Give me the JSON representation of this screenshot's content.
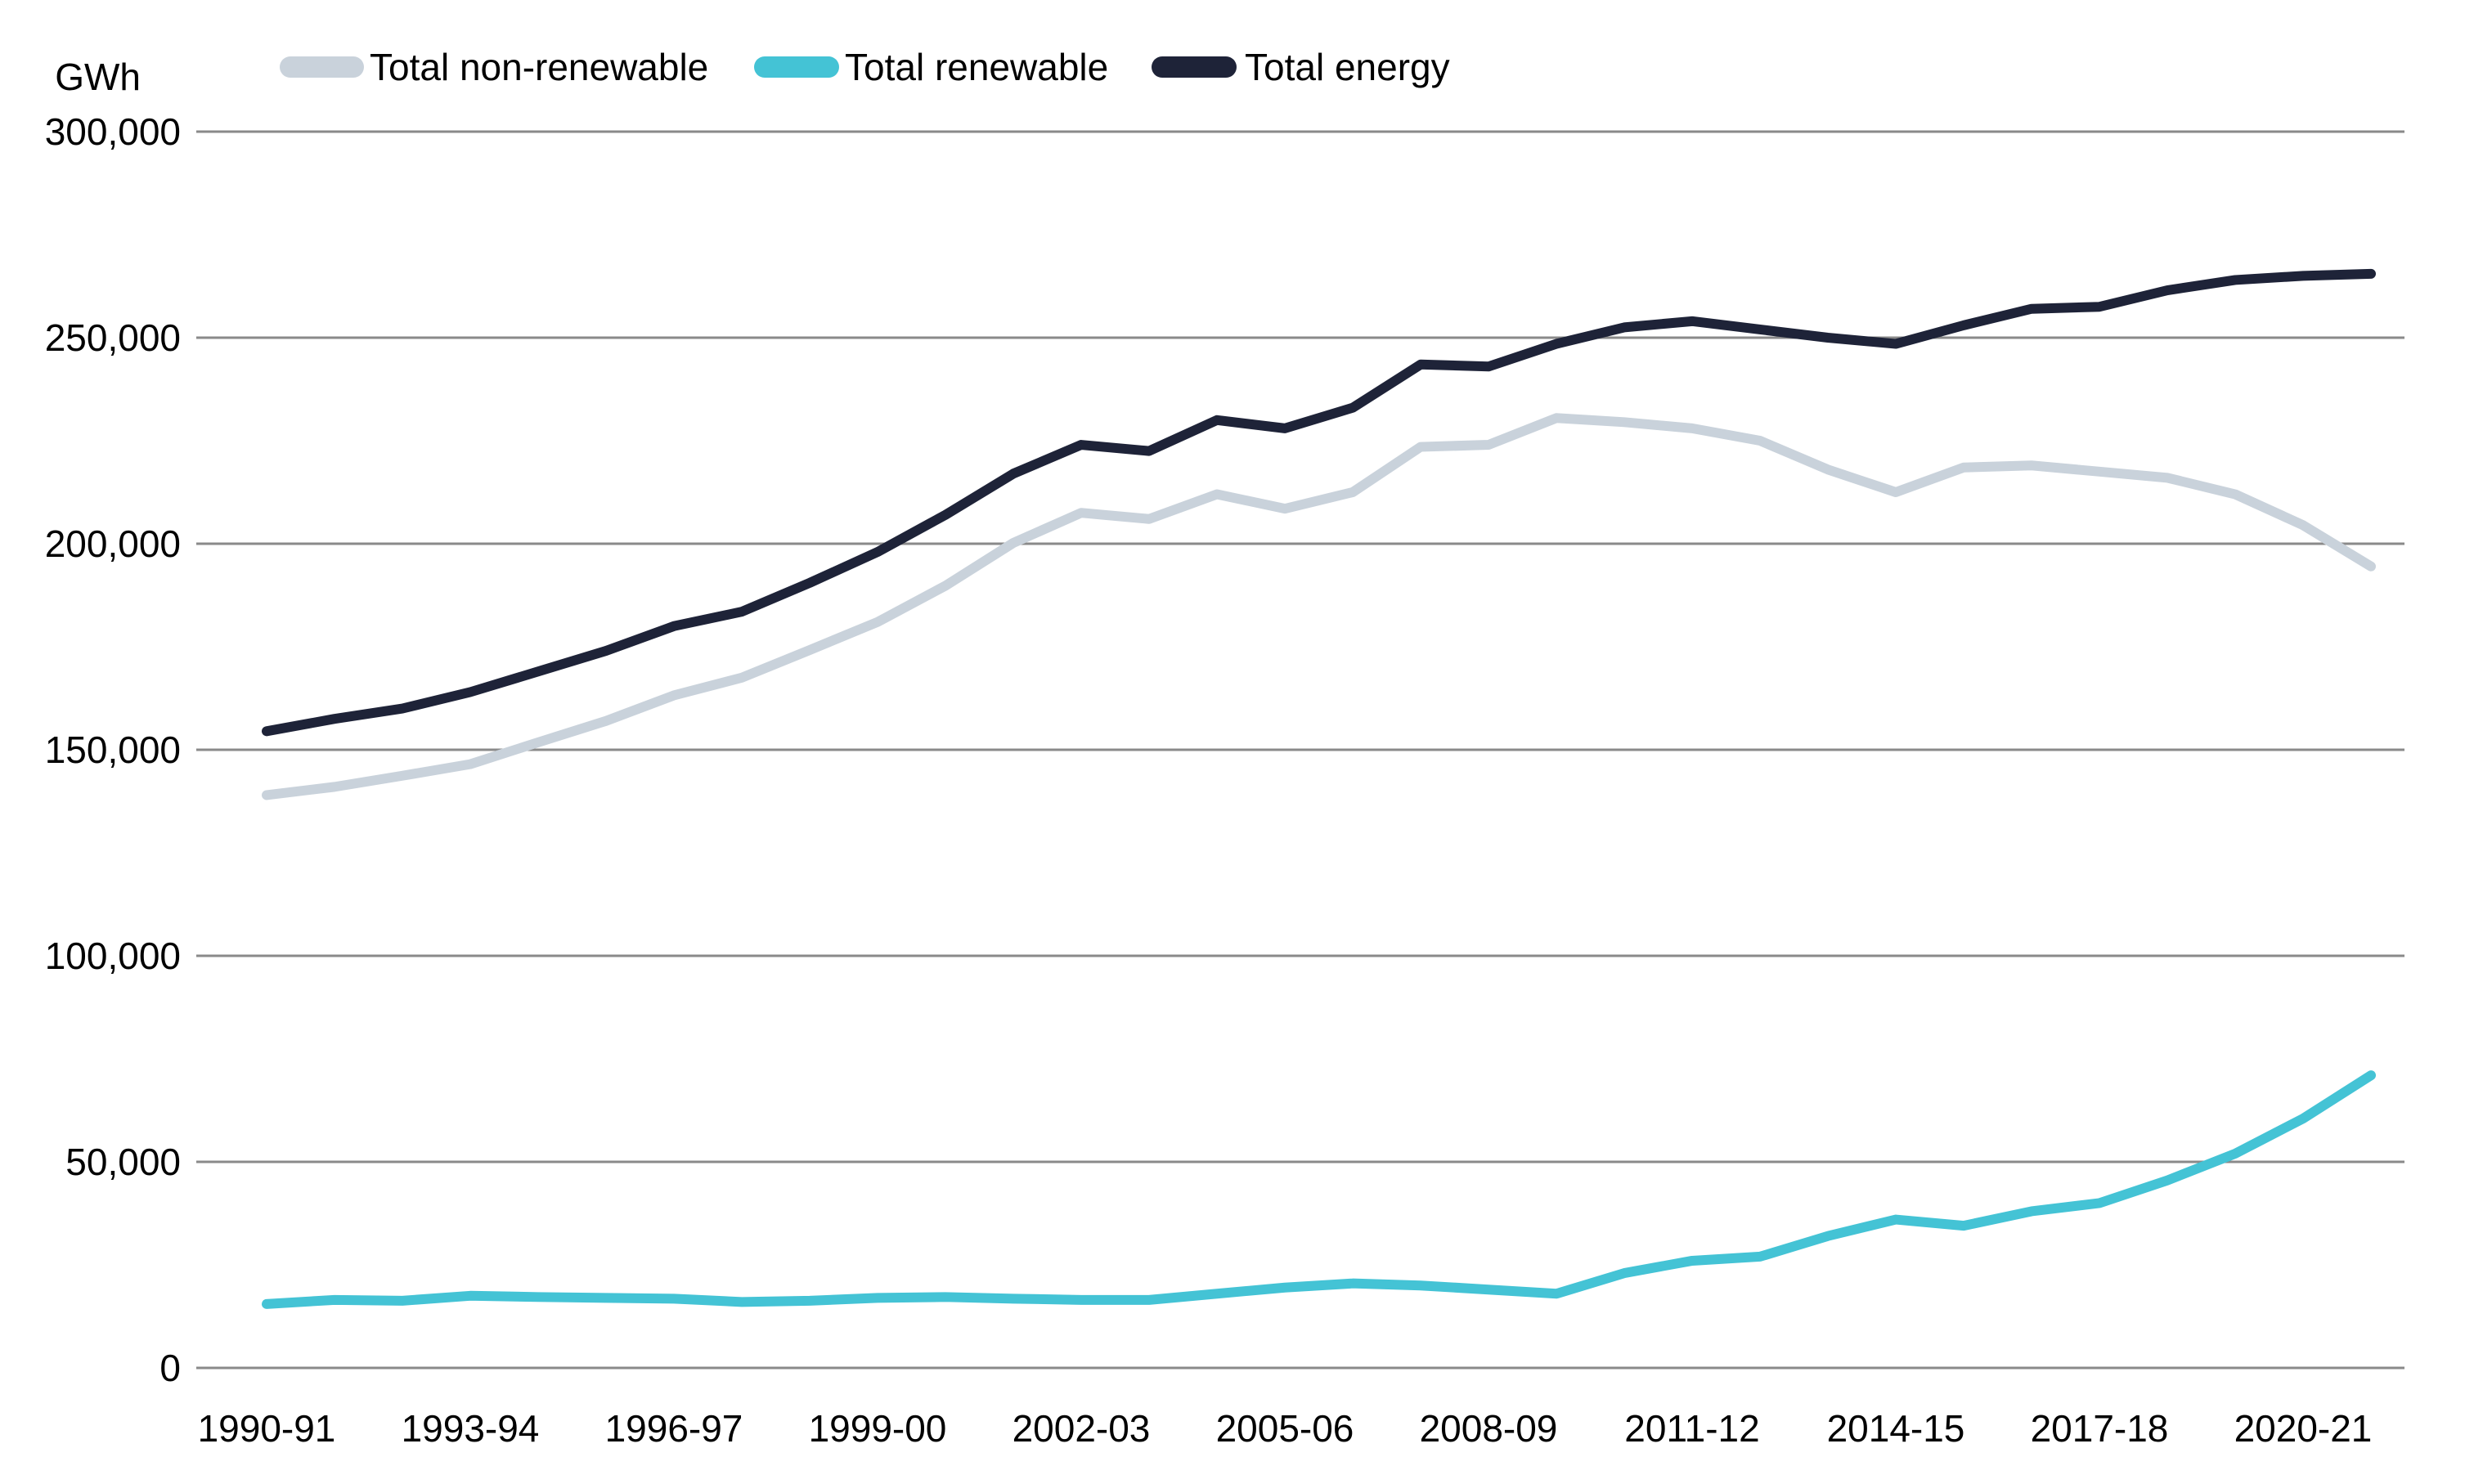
{
  "chart_data": {
    "type": "line",
    "title": "",
    "unit_label": "GWh",
    "ylabel": "GWh",
    "xlabel": "",
    "ylim": [
      0,
      300000
    ],
    "grid": "horizontal-only",
    "legend_position": "top",
    "y_ticks": [
      {
        "value": 0,
        "label": "0"
      },
      {
        "value": 50000,
        "label": "50,000"
      },
      {
        "value": 100000,
        "label": "100,000"
      },
      {
        "value": 150000,
        "label": "150,000"
      },
      {
        "value": 200000,
        "label": "200,000"
      },
      {
        "value": 250000,
        "label": "250,000"
      },
      {
        "value": 300000,
        "label": "300,000"
      }
    ],
    "x_tick_labels": [
      "1990-91",
      "1993-94",
      "1996-97",
      "1999-00",
      "2002-03",
      "2005-06",
      "2008-09",
      "2011-12",
      "2014-15",
      "2017-18",
      "2020-21"
    ],
    "x_tick_every": 3,
    "categories": [
      "1990-91",
      "1991-92",
      "1992-93",
      "1993-94",
      "1994-95",
      "1995-96",
      "1996-97",
      "1997-98",
      "1998-99",
      "1999-00",
      "2000-01",
      "2001-02",
      "2002-03",
      "2003-04",
      "2004-05",
      "2005-06",
      "2006-07",
      "2007-08",
      "2008-09",
      "2009-10",
      "2010-11",
      "2011-12",
      "2012-13",
      "2013-14",
      "2014-15",
      "2015-16",
      "2016-17",
      "2017-18",
      "2018-19",
      "2019-20",
      "2020-21",
      "2021-22"
    ],
    "series": [
      {
        "name": "Total non-renewable",
        "color": "#c9d2db",
        "values": [
          139000,
          141000,
          143700,
          146500,
          151800,
          157000,
          163200,
          167500,
          174200,
          181000,
          189800,
          200200,
          207500,
          206000,
          212000,
          208500,
          212500,
          223500,
          224000,
          230500,
          229500,
          228000,
          225000,
          218000,
          212500,
          218500,
          219000,
          217500,
          216000,
          212000,
          204500,
          194500
        ]
      },
      {
        "name": "Total renewable",
        "color": "#44c3d5",
        "values": [
          15500,
          16500,
          16300,
          17500,
          17200,
          17000,
          16800,
          16000,
          16300,
          17000,
          17200,
          16800,
          16500,
          16500,
          18000,
          19500,
          20500,
          20000,
          19000,
          18000,
          23000,
          26000,
          27000,
          32000,
          36000,
          34500,
          38000,
          40000,
          45500,
          52000,
          60500,
          71000
        ]
      },
      {
        "name": "Total energy",
        "color": "#1e2338",
        "values": [
          154500,
          157500,
          160000,
          164000,
          169000,
          174000,
          180000,
          183500,
          190500,
          198000,
          207000,
          217000,
          224000,
          222500,
          230000,
          228000,
          233000,
          243500,
          243000,
          248500,
          252500,
          254000,
          252000,
          250000,
          248500,
          253000,
          257000,
          257500,
          261500,
          264000,
          265000,
          265500
        ]
      }
    ]
  },
  "layout_colors": {
    "background": "#ffffff",
    "gridline": "#8a8a8a",
    "text": "#000000"
  }
}
